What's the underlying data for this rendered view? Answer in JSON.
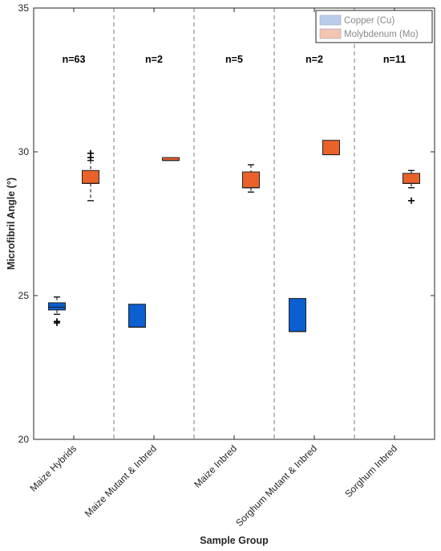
{
  "chart_data": {
    "type": "box",
    "xlabel": "Sample Group",
    "ylabel": "Microfibril Angle (°)",
    "ylim": [
      20,
      35
    ],
    "yticks": [
      20,
      25,
      30,
      35
    ],
    "categories": [
      "Maize Hybrids",
      "Maize Mutant & Inbred",
      "Maize Inbred",
      "Sorghum Mutant & Inbred",
      "Sorghum Inbred"
    ],
    "group_counts": [
      "n=63",
      "n=2",
      "n=5",
      "n=2",
      "n=11"
    ],
    "separators": "dashed vertical lines between groups",
    "legend": {
      "position": "top-right",
      "entries": [
        {
          "label": "Copper (Cu)",
          "color": "#b8cde9"
        },
        {
          "label": "Molybdenum (Mo)",
          "color": "#f3c4ae"
        }
      ]
    },
    "series": [
      {
        "name": "Copper (Cu)",
        "color": "#0a5fd1",
        "boxes": [
          {
            "category": "Maize Hybrids",
            "q1": 24.5,
            "median": 24.6,
            "q3": 24.75,
            "whisker_low": 24.35,
            "whisker_high": 24.95,
            "outliers": [
              24.1,
              24.05
            ]
          },
          {
            "category": "Maize Mutant & Inbred",
            "q1": 23.9,
            "median": 23.9,
            "q3": 24.7,
            "whisker_low": null,
            "whisker_high": null,
            "outliers": []
          },
          {
            "category": "Sorghum Mutant & Inbred",
            "q1": 23.75,
            "median": 23.75,
            "q3": 24.9,
            "whisker_low": null,
            "whisker_high": null,
            "outliers": []
          }
        ]
      },
      {
        "name": "Molybdenum (Mo)",
        "color": "#e8622a",
        "boxes": [
          {
            "category": "Maize Hybrids",
            "q1": 28.9,
            "median": 28.9,
            "q3": 29.35,
            "whisker_low": 28.3,
            "whisker_high": 29.7,
            "outliers": [
              29.95,
              29.8
            ]
          },
          {
            "category": "Maize Mutant & Inbred",
            "q1": 29.7,
            "median": 29.7,
            "q3": 29.8,
            "whisker_low": null,
            "whisker_high": null,
            "outliers": []
          },
          {
            "category": "Maize Inbred",
            "q1": 28.75,
            "median": 28.75,
            "q3": 29.3,
            "whisker_low": 28.6,
            "whisker_high": 29.55,
            "outliers": []
          },
          {
            "category": "Sorghum Mutant & Inbred",
            "q1": 29.9,
            "median": 29.9,
            "q3": 30.4,
            "whisker_low": null,
            "whisker_high": null,
            "outliers": []
          },
          {
            "category": "Sorghum Inbred",
            "q1": 28.9,
            "median": 28.9,
            "q3": 29.25,
            "whisker_low": 28.75,
            "whisker_high": 29.35,
            "outliers": [
              28.3
            ]
          }
        ]
      }
    ]
  }
}
